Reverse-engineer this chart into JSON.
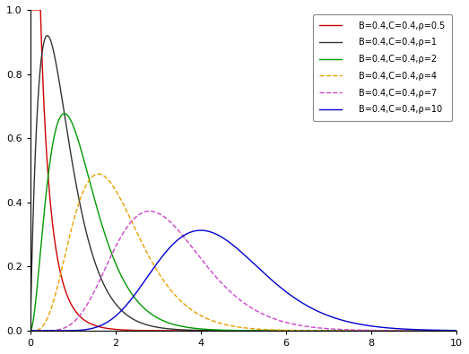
{
  "B": 0.4,
  "C": 0.4,
  "rho_values": [
    0.5,
    1,
    2,
    4,
    7,
    10
  ],
  "colors": [
    "#cc0000",
    "#333333",
    "#009900",
    "#e8a000",
    "#cc44cc",
    "#0000cc"
  ],
  "linestyles": [
    "-",
    "-",
    "-",
    "--",
    "--",
    "-"
  ],
  "linewidths": [
    1.0,
    1.0,
    1.0,
    1.0,
    1.0,
    1.0
  ],
  "legend_labels": [
    "B=0.4,C=0.4,ρ=0.5",
    "B=0.4,C=0.4,ρ=1",
    "B=0.4,C=0.4,ρ=2",
    "B=0.4,C=0.4,ρ=4",
    "B=0.4,C=0.4,ρ=7",
    "B=0.4,C=0.4,ρ=10"
  ],
  "xlim": [
    0,
    10
  ],
  "ylim": [
    0,
    1.0
  ],
  "xticks": [
    0,
    2,
    4,
    6,
    8,
    10
  ],
  "yticks": [
    0.0,
    0.2,
    0.4,
    0.6,
    0.8,
    1.0
  ],
  "background_color": "#ffffff"
}
